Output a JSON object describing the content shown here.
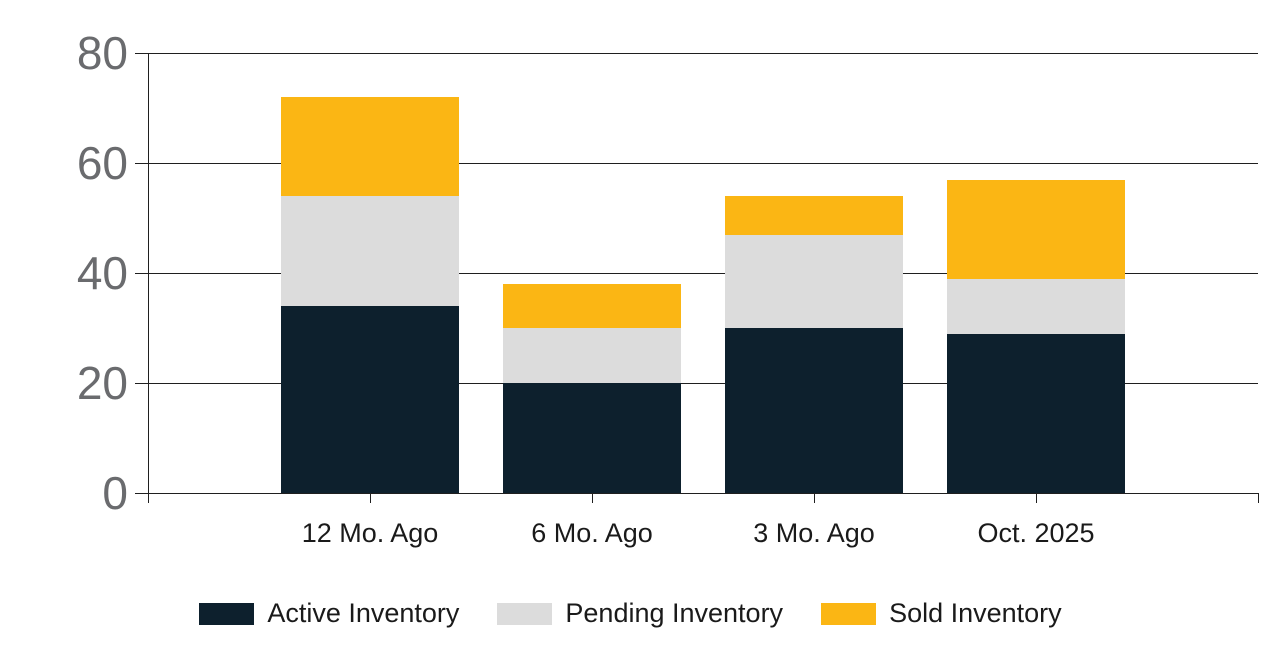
{
  "chart_data": {
    "type": "bar",
    "stacked": true,
    "title": "",
    "categories": [
      "12 Mo. Ago",
      "6 Mo. Ago",
      "3 Mo. Ago",
      "Oct. 2025"
    ],
    "series": [
      {
        "name": "Active Inventory",
        "color": "#0D202D",
        "values": [
          34,
          20,
          30,
          29
        ]
      },
      {
        "name": "Pending Inventory",
        "color": "#DCDCDC",
        "values": [
          20,
          10,
          17,
          10
        ]
      },
      {
        "name": "Sold Inventory",
        "color": "#FBB614",
        "values": [
          18,
          8,
          7,
          18
        ]
      }
    ],
    "stack_totals": [
      72,
      38,
      54,
      57
    ],
    "y_ticks": [
      0,
      20,
      40,
      60,
      80
    ],
    "ylim": [
      0,
      80
    ],
    "xlabel": "",
    "ylabel": "",
    "grid": true,
    "legend_position": "bottom",
    "colors": {
      "axis_tick_label": "#6A6B6E",
      "category_label": "#1A1A1A",
      "gridline": "#1F1F1F",
      "background": "#FFFFFF"
    }
  }
}
